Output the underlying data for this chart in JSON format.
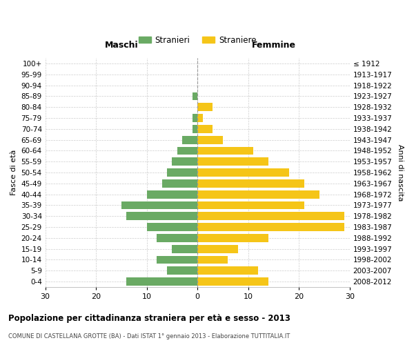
{
  "age_groups": [
    "0-4",
    "5-9",
    "10-14",
    "15-19",
    "20-24",
    "25-29",
    "30-34",
    "35-39",
    "40-44",
    "45-49",
    "50-54",
    "55-59",
    "60-64",
    "65-69",
    "70-74",
    "75-79",
    "80-84",
    "85-89",
    "90-94",
    "95-99",
    "100+"
  ],
  "birth_years": [
    "2008-2012",
    "2003-2007",
    "1998-2002",
    "1993-1997",
    "1988-1992",
    "1983-1987",
    "1978-1982",
    "1973-1977",
    "1968-1972",
    "1963-1967",
    "1958-1962",
    "1953-1957",
    "1948-1952",
    "1943-1947",
    "1938-1942",
    "1933-1937",
    "1928-1932",
    "1923-1927",
    "1918-1922",
    "1913-1917",
    "≤ 1912"
  ],
  "males": [
    14,
    6,
    8,
    5,
    8,
    10,
    14,
    15,
    10,
    7,
    6,
    5,
    4,
    3,
    1,
    1,
    0,
    1,
    0,
    0,
    0
  ],
  "females": [
    14,
    12,
    6,
    8,
    14,
    29,
    29,
    21,
    24,
    21,
    18,
    14,
    11,
    5,
    3,
    1,
    3,
    0,
    0,
    0,
    0
  ],
  "male_color": "#6aaa64",
  "female_color": "#f5c518",
  "background_color": "#ffffff",
  "grid_color": "#cccccc",
  "title": "Popolazione per cittadinanza straniera per età e sesso - 2013",
  "subtitle": "COMUNE DI CASTELLANA GROTTE (BA) - Dati ISTAT 1° gennaio 2013 - Elaborazione TUTTITALIA.IT",
  "xlabel_left": "Maschi",
  "xlabel_right": "Femmine",
  "ylabel_left": "Fasce di età",
  "ylabel_right": "Anni di nascita",
  "legend_male": "Stranieri",
  "legend_female": "Straniere",
  "xlim": 30,
  "bar_height": 0.75
}
